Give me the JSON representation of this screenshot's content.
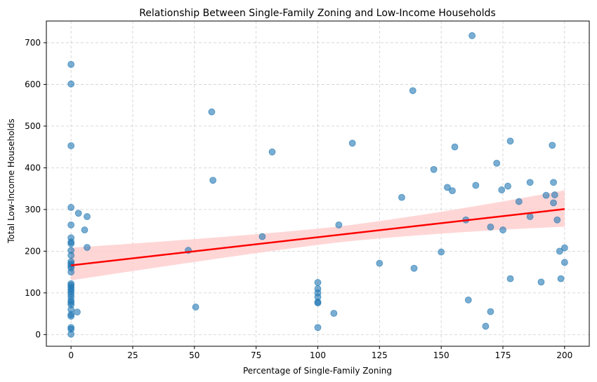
{
  "chart_data": {
    "type": "scatter",
    "title": "Relationship Between Single-Family Zoning and Low-Income Households",
    "xlabel": "Percentage of Single-Family Zoning",
    "ylabel": "Total Low-Income Households",
    "xlim": [
      -10,
      210
    ],
    "ylim": [
      -28,
      752
    ],
    "xticks": [
      0,
      25,
      50,
      75,
      100,
      125,
      150,
      175,
      200
    ],
    "yticks": [
      0,
      100,
      200,
      300,
      400,
      500,
      600,
      700
    ],
    "grid": true,
    "points_color": "#1f77b4",
    "points": [
      [
        0,
        648
      ],
      [
        0,
        601
      ],
      [
        0,
        453
      ],
      [
        0,
        305
      ],
      [
        0,
        263
      ],
      [
        0,
        232
      ],
      [
        0,
        222
      ],
      [
        0,
        218
      ],
      [
        0,
        202
      ],
      [
        0,
        190
      ],
      [
        0,
        175
      ],
      [
        0,
        170
      ],
      [
        0,
        165
      ],
      [
        0,
        160
      ],
      [
        0,
        150
      ],
      [
        0,
        122
      ],
      [
        0,
        118
      ],
      [
        0,
        113
      ],
      [
        0,
        108
      ],
      [
        0,
        103
      ],
      [
        0,
        97
      ],
      [
        0,
        90
      ],
      [
        0,
        82
      ],
      [
        0,
        77
      ],
      [
        0,
        72
      ],
      [
        0,
        60
      ],
      [
        0,
        48
      ],
      [
        0,
        44
      ],
      [
        0,
        17
      ],
      [
        0,
        13
      ],
      [
        0,
        1
      ],
      [
        2.5,
        54
      ],
      [
        3,
        291
      ],
      [
        5.5,
        251
      ],
      [
        6.5,
        283
      ],
      [
        6.5,
        209
      ],
      [
        47.5,
        202
      ],
      [
        50.5,
        66
      ],
      [
        57,
        534
      ],
      [
        57.5,
        370
      ],
      [
        77.5,
        235
      ],
      [
        81.5,
        438
      ],
      [
        100,
        125
      ],
      [
        100,
        110
      ],
      [
        100,
        100
      ],
      [
        100,
        90
      ],
      [
        100,
        78
      ],
      [
        100,
        76
      ],
      [
        100,
        17
      ],
      [
        106.5,
        51
      ],
      [
        108.5,
        263
      ],
      [
        114,
        459
      ],
      [
        125,
        171
      ],
      [
        134,
        329
      ],
      [
        138.5,
        585
      ],
      [
        139,
        159
      ],
      [
        147,
        396
      ],
      [
        150,
        198
      ],
      [
        152.5,
        353
      ],
      [
        154.5,
        345
      ],
      [
        155.5,
        450
      ],
      [
        160,
        275
      ],
      [
        161,
        83
      ],
      [
        162.5,
        717
      ],
      [
        164,
        358
      ],
      [
        168,
        20
      ],
      [
        170,
        258
      ],
      [
        170,
        55
      ],
      [
        172.5,
        411
      ],
      [
        174.5,
        347
      ],
      [
        175,
        251
      ],
      [
        177,
        356
      ],
      [
        178,
        134
      ],
      [
        178,
        464
      ],
      [
        181.5,
        319
      ],
      [
        186,
        283
      ],
      [
        186,
        365
      ],
      [
        190.5,
        126
      ],
      [
        192.5,
        334
      ],
      [
        195,
        454
      ],
      [
        195.5,
        316
      ],
      [
        195.5,
        365
      ],
      [
        196,
        335
      ],
      [
        197,
        275
      ],
      [
        198,
        200
      ],
      [
        198.5,
        134
      ],
      [
        200,
        208
      ],
      [
        200,
        173
      ]
    ],
    "regression": {
      "color": "#ff0000",
      "ci_color": "#ffcccc",
      "x": [
        0,
        200
      ],
      "y": [
        166,
        301
      ],
      "ci_lower": [
        133,
        255
      ],
      "ci_upper": [
        205,
        350
      ]
    }
  }
}
